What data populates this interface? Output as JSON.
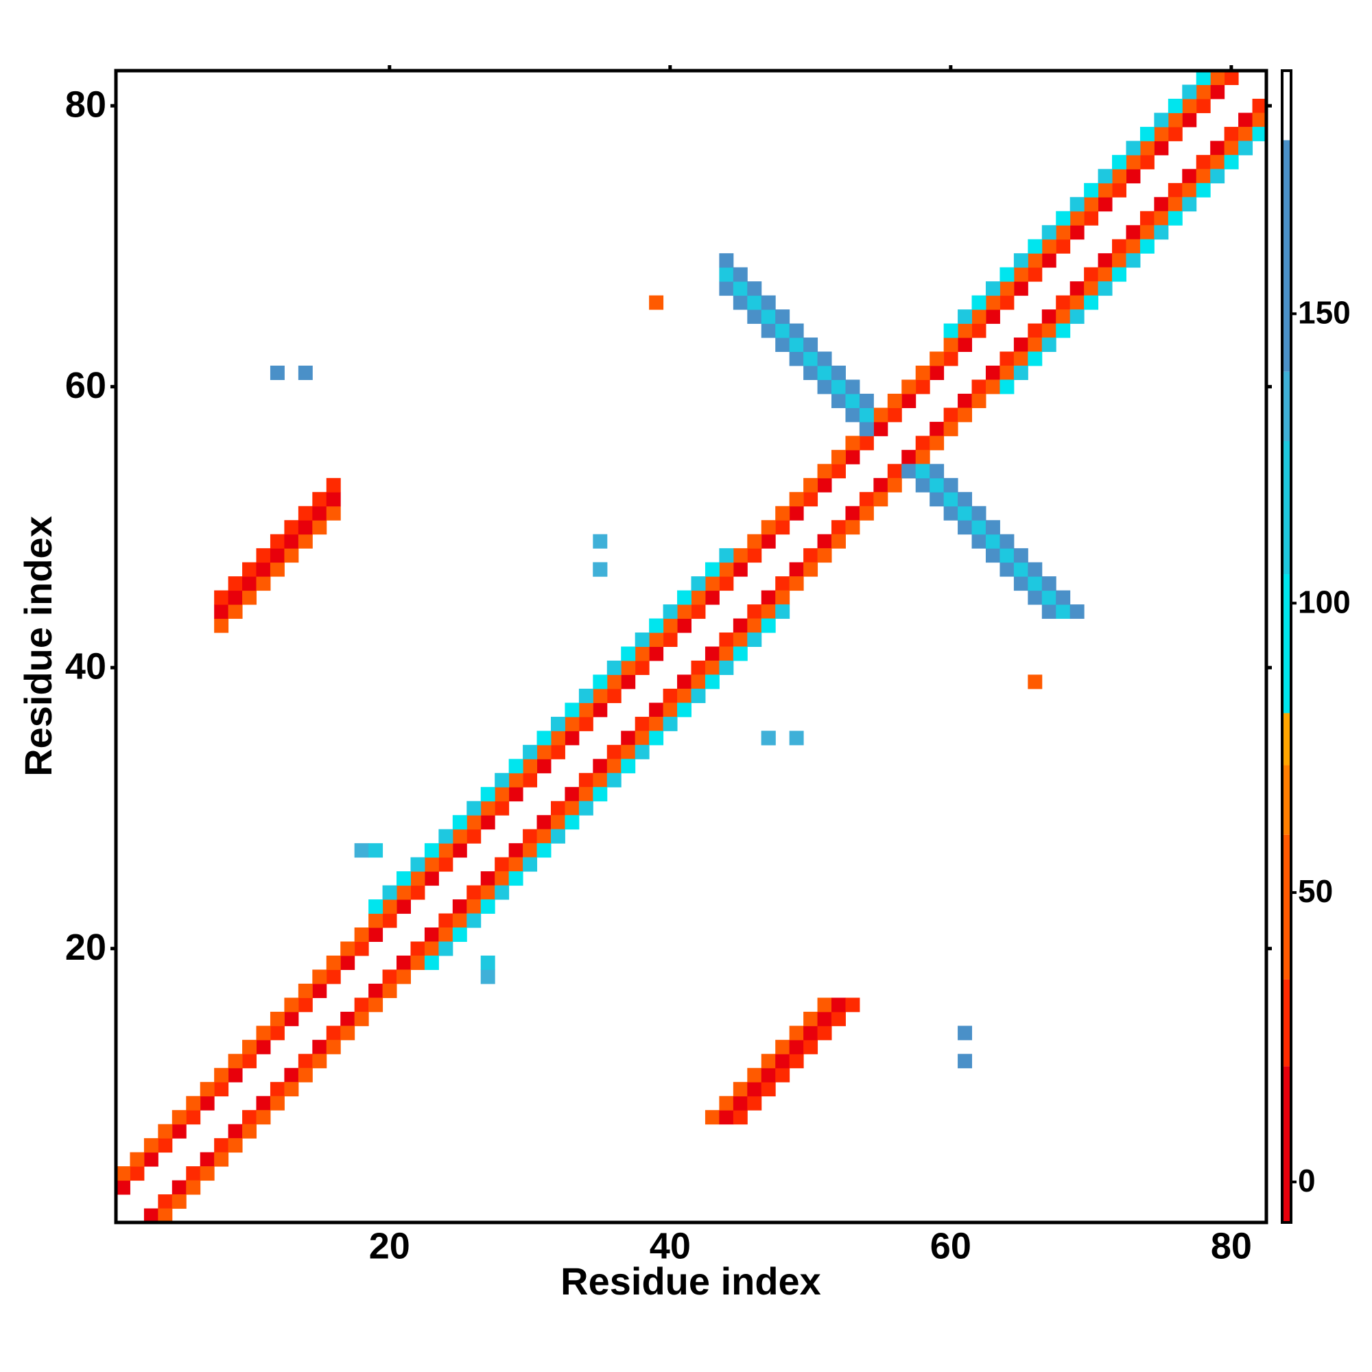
{
  "chart_data": {
    "type": "heatmap",
    "xlabel": "Residue index",
    "ylabel": "Residue index",
    "xlim": [
      0.5,
      82.5
    ],
    "ylim": [
      0.5,
      82.5
    ],
    "xticks": [
      20,
      40,
      60,
      80
    ],
    "yticks": [
      20,
      40,
      60,
      80
    ],
    "symmetric": true,
    "colorbar": {
      "lim": [
        -7,
        192
      ],
      "ticks": [
        0,
        50,
        100,
        150
      ]
    },
    "colorscale": [
      [
        -7,
        "#e8000b"
      ],
      [
        20,
        "#ff2a00"
      ],
      [
        35,
        "#ff5a00"
      ],
      [
        60,
        "#ff7f00"
      ],
      [
        72,
        "#ffa500"
      ],
      [
        81,
        "#00e5ee"
      ],
      [
        105,
        "#1ec8e0"
      ],
      [
        128,
        "#3fb0d8"
      ],
      [
        140,
        "#4a90c8"
      ],
      [
        180,
        "#ffffff"
      ]
    ],
    "cells": [
      [
        1,
        3,
        12
      ],
      [
        2,
        4,
        28
      ],
      [
        3,
        5,
        12
      ],
      [
        4,
        6,
        28
      ],
      [
        5,
        7,
        12
      ],
      [
        6,
        8,
        28
      ],
      [
        7,
        9,
        12
      ],
      [
        8,
        10,
        28
      ],
      [
        9,
        11,
        12
      ],
      [
        10,
        12,
        28
      ],
      [
        11,
        13,
        12
      ],
      [
        12,
        14,
        28
      ],
      [
        13,
        15,
        12
      ],
      [
        14,
        16,
        28
      ],
      [
        15,
        17,
        12
      ],
      [
        16,
        18,
        28
      ],
      [
        17,
        19,
        12
      ],
      [
        18,
        20,
        28
      ],
      [
        19,
        21,
        12
      ],
      [
        20,
        22,
        28
      ],
      [
        21,
        23,
        12
      ],
      [
        22,
        24,
        28
      ],
      [
        23,
        25,
        12
      ],
      [
        24,
        26,
        28
      ],
      [
        25,
        27,
        12
      ],
      [
        26,
        28,
        28
      ],
      [
        27,
        29,
        12
      ],
      [
        28,
        30,
        28
      ],
      [
        29,
        31,
        12
      ],
      [
        30,
        32,
        28
      ],
      [
        31,
        33,
        12
      ],
      [
        32,
        34,
        28
      ],
      [
        33,
        35,
        12
      ],
      [
        34,
        36,
        28
      ],
      [
        35,
        37,
        12
      ],
      [
        36,
        38,
        28
      ],
      [
        37,
        39,
        12
      ],
      [
        38,
        40,
        28
      ],
      [
        39,
        41,
        12
      ],
      [
        40,
        42,
        28
      ],
      [
        41,
        43,
        12
      ],
      [
        42,
        44,
        28
      ],
      [
        43,
        45,
        12
      ],
      [
        44,
        46,
        28
      ],
      [
        45,
        47,
        12
      ],
      [
        46,
        48,
        28
      ],
      [
        47,
        49,
        12
      ],
      [
        48,
        50,
        28
      ],
      [
        49,
        51,
        12
      ],
      [
        50,
        52,
        28
      ],
      [
        51,
        53,
        12
      ],
      [
        52,
        54,
        28
      ],
      [
        53,
        55,
        12
      ],
      [
        54,
        56,
        28
      ],
      [
        55,
        57,
        12
      ],
      [
        56,
        58,
        28
      ],
      [
        57,
        59,
        12
      ],
      [
        58,
        60,
        28
      ],
      [
        59,
        61,
        12
      ],
      [
        60,
        62,
        28
      ],
      [
        61,
        63,
        12
      ],
      [
        62,
        64,
        28
      ],
      [
        63,
        65,
        12
      ],
      [
        64,
        66,
        28
      ],
      [
        65,
        67,
        12
      ],
      [
        66,
        68,
        28
      ],
      [
        67,
        69,
        12
      ],
      [
        68,
        70,
        28
      ],
      [
        69,
        71,
        12
      ],
      [
        70,
        72,
        28
      ],
      [
        71,
        73,
        12
      ],
      [
        72,
        74,
        28
      ],
      [
        73,
        75,
        12
      ],
      [
        74,
        76,
        28
      ],
      [
        75,
        77,
        12
      ],
      [
        76,
        78,
        28
      ],
      [
        77,
        79,
        12
      ],
      [
        78,
        80,
        28
      ],
      [
        79,
        81,
        12
      ],
      [
        80,
        82,
        28
      ],
      [
        1,
        4,
        42
      ],
      [
        2,
        5,
        55
      ],
      [
        3,
        6,
        42
      ],
      [
        4,
        7,
        55
      ],
      [
        5,
        8,
        42
      ],
      [
        6,
        9,
        55
      ],
      [
        7,
        10,
        42
      ],
      [
        8,
        11,
        55
      ],
      [
        9,
        12,
        42
      ],
      [
        10,
        13,
        55
      ],
      [
        11,
        14,
        42
      ],
      [
        12,
        15,
        55
      ],
      [
        13,
        16,
        42
      ],
      [
        14,
        17,
        55
      ],
      [
        15,
        18,
        42
      ],
      [
        16,
        19,
        55
      ],
      [
        17,
        20,
        42
      ],
      [
        18,
        21,
        55
      ],
      [
        19,
        22,
        42
      ],
      [
        20,
        23,
        55
      ],
      [
        21,
        24,
        42
      ],
      [
        22,
        25,
        55
      ],
      [
        23,
        26,
        42
      ],
      [
        24,
        27,
        55
      ],
      [
        25,
        28,
        42
      ],
      [
        26,
        29,
        55
      ],
      [
        27,
        30,
        42
      ],
      [
        28,
        31,
        55
      ],
      [
        29,
        32,
        42
      ],
      [
        30,
        33,
        55
      ],
      [
        31,
        34,
        42
      ],
      [
        32,
        35,
        55
      ],
      [
        33,
        36,
        42
      ],
      [
        34,
        37,
        55
      ],
      [
        35,
        38,
        42
      ],
      [
        36,
        39,
        55
      ],
      [
        37,
        40,
        42
      ],
      [
        38,
        41,
        55
      ],
      [
        39,
        42,
        42
      ],
      [
        40,
        43,
        55
      ],
      [
        41,
        44,
        42
      ],
      [
        42,
        45,
        55
      ],
      [
        43,
        46,
        42
      ],
      [
        44,
        47,
        55
      ],
      [
        45,
        48,
        42
      ],
      [
        46,
        49,
        55
      ],
      [
        47,
        50,
        42
      ],
      [
        48,
        51,
        55
      ],
      [
        49,
        52,
        42
      ],
      [
        50,
        53,
        55
      ],
      [
        51,
        54,
        42
      ],
      [
        52,
        55,
        55
      ],
      [
        53,
        56,
        42
      ],
      [
        54,
        57,
        55
      ],
      [
        55,
        58,
        42
      ],
      [
        56,
        59,
        55
      ],
      [
        57,
        60,
        42
      ],
      [
        58,
        61,
        55
      ],
      [
        59,
        62,
        42
      ],
      [
        60,
        63,
        55
      ],
      [
        61,
        64,
        42
      ],
      [
        62,
        65,
        55
      ],
      [
        63,
        66,
        42
      ],
      [
        64,
        67,
        55
      ],
      [
        65,
        68,
        42
      ],
      [
        66,
        69,
        55
      ],
      [
        67,
        70,
        42
      ],
      [
        68,
        71,
        55
      ],
      [
        69,
        72,
        42
      ],
      [
        70,
        73,
        55
      ],
      [
        71,
        74,
        42
      ],
      [
        72,
        75,
        55
      ],
      [
        73,
        76,
        42
      ],
      [
        74,
        77,
        55
      ],
      [
        75,
        78,
        42
      ],
      [
        76,
        79,
        55
      ],
      [
        77,
        80,
        42
      ],
      [
        78,
        81,
        55
      ],
      [
        79,
        82,
        42
      ],
      [
        19,
        23,
        95
      ],
      [
        20,
        24,
        125
      ],
      [
        21,
        25,
        95
      ],
      [
        22,
        26,
        125
      ],
      [
        23,
        27,
        95
      ],
      [
        24,
        28,
        125
      ],
      [
        25,
        29,
        95
      ],
      [
        26,
        30,
        125
      ],
      [
        27,
        31,
        95
      ],
      [
        28,
        32,
        125
      ],
      [
        29,
        33,
        95
      ],
      [
        30,
        34,
        125
      ],
      [
        31,
        35,
        95
      ],
      [
        32,
        36,
        125
      ],
      [
        33,
        37,
        95
      ],
      [
        34,
        38,
        125
      ],
      [
        35,
        39,
        95
      ],
      [
        36,
        40,
        125
      ],
      [
        37,
        41,
        95
      ],
      [
        38,
        42,
        125
      ],
      [
        39,
        43,
        95
      ],
      [
        40,
        44,
        125
      ],
      [
        41,
        45,
        95
      ],
      [
        42,
        46,
        125
      ],
      [
        43,
        47,
        95
      ],
      [
        44,
        48,
        125
      ],
      [
        60,
        64,
        95
      ],
      [
        61,
        65,
        125
      ],
      [
        62,
        66,
        95
      ],
      [
        63,
        67,
        125
      ],
      [
        64,
        68,
        95
      ],
      [
        65,
        69,
        125
      ],
      [
        66,
        70,
        95
      ],
      [
        67,
        71,
        125
      ],
      [
        68,
        72,
        95
      ],
      [
        69,
        73,
        125
      ],
      [
        70,
        74,
        95
      ],
      [
        71,
        75,
        125
      ],
      [
        72,
        76,
        95
      ],
      [
        73,
        77,
        125
      ],
      [
        74,
        78,
        95
      ],
      [
        75,
        79,
        125
      ],
      [
        76,
        80,
        95
      ],
      [
        77,
        81,
        125
      ],
      [
        78,
        82,
        95
      ],
      [
        8,
        43,
        40
      ],
      [
        8,
        44,
        18
      ],
      [
        8,
        45,
        30
      ],
      [
        9,
        44,
        40
      ],
      [
        9,
        45,
        18
      ],
      [
        9,
        46,
        30
      ],
      [
        10,
        45,
        40
      ],
      [
        10,
        46,
        18
      ],
      [
        10,
        47,
        30
      ],
      [
        11,
        46,
        40
      ],
      [
        11,
        47,
        18
      ],
      [
        11,
        48,
        30
      ],
      [
        12,
        47,
        40
      ],
      [
        12,
        48,
        18
      ],
      [
        12,
        49,
        30
      ],
      [
        13,
        48,
        40
      ],
      [
        13,
        49,
        18
      ],
      [
        13,
        50,
        30
      ],
      [
        14,
        49,
        40
      ],
      [
        14,
        50,
        18
      ],
      [
        14,
        51,
        30
      ],
      [
        15,
        50,
        40
      ],
      [
        15,
        51,
        18
      ],
      [
        15,
        52,
        30
      ],
      [
        16,
        51,
        40
      ],
      [
        16,
        52,
        18
      ],
      [
        16,
        53,
        30
      ],
      [
        44,
        67,
        140
      ],
      [
        44,
        68,
        120
      ],
      [
        44,
        69,
        150
      ],
      [
        45,
        66,
        140
      ],
      [
        45,
        67,
        120
      ],
      [
        45,
        68,
        150
      ],
      [
        46,
        65,
        140
      ],
      [
        46,
        66,
        120
      ],
      [
        46,
        67,
        150
      ],
      [
        47,
        64,
        140
      ],
      [
        47,
        65,
        120
      ],
      [
        47,
        66,
        150
      ],
      [
        48,
        63,
        140
      ],
      [
        48,
        64,
        120
      ],
      [
        48,
        65,
        150
      ],
      [
        49,
        62,
        140
      ],
      [
        49,
        63,
        120
      ],
      [
        49,
        64,
        150
      ],
      [
        50,
        61,
        140
      ],
      [
        50,
        62,
        120
      ],
      [
        50,
        63,
        150
      ],
      [
        51,
        60,
        140
      ],
      [
        51,
        61,
        120
      ],
      [
        51,
        62,
        150
      ],
      [
        52,
        59,
        140
      ],
      [
        52,
        60,
        120
      ],
      [
        52,
        61,
        150
      ],
      [
        53,
        58,
        140
      ],
      [
        53,
        59,
        120
      ],
      [
        53,
        60,
        150
      ],
      [
        54,
        57,
        140
      ],
      [
        54,
        58,
        120
      ],
      [
        54,
        59,
        150
      ],
      [
        12,
        61,
        150
      ],
      [
        14,
        61,
        145
      ],
      [
        35,
        47,
        130
      ],
      [
        35,
        49,
        130
      ],
      [
        18,
        27,
        130
      ],
      [
        19,
        27,
        125
      ],
      [
        39,
        66,
        45
      ],
      [
        47,
        35,
        130
      ]
    ]
  }
}
